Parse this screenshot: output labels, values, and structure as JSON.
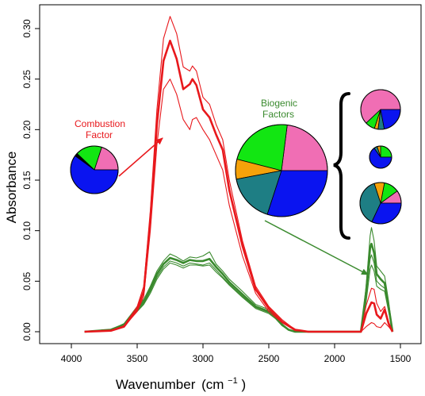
{
  "chart_data": {
    "type": "line",
    "title": "",
    "xlabel": "Wavenumber",
    "xlabel_unit_base": "(cm",
    "xlabel_unit_exp": "−1",
    "xlabel_unit_close": ")",
    "ylabel": "Absorbance",
    "xlim": [
      4000,
      1400
    ],
    "ylim": [
      0,
      0.32
    ],
    "x_reversed": true,
    "grid": false,
    "legend": "none",
    "x_ticks": [
      4000,
      3500,
      3000,
      2500,
      2000,
      1500
    ],
    "x_tick_labels": [
      "4000",
      "3500",
      "3000",
      "2500",
      "2000",
      "1500"
    ],
    "y_ticks": [
      0.0,
      0.05,
      0.1,
      0.15,
      0.2,
      0.25,
      0.3
    ],
    "y_tick_labels": [
      "0.00",
      "0.05",
      "0.10",
      "0.15",
      "0.20",
      "0.25",
      "0.30"
    ],
    "colors": {
      "combustion": "#e8181c",
      "biogenic": "#3a8a2e",
      "blue": "#0a14f0",
      "pink": "#f06eb4",
      "green": "#12e612",
      "teal": "#1e7e84",
      "orange": "#f5a20a",
      "black": "#000000"
    },
    "series": [
      {
        "group": "combustion",
        "bold": false,
        "points": [
          [
            3900,
            0
          ],
          [
            3700,
            0.001
          ],
          [
            3600,
            0.006
          ],
          [
            3500,
            0.025
          ],
          [
            3450,
            0.045
          ],
          [
            3400,
            0.12
          ],
          [
            3350,
            0.22
          ],
          [
            3300,
            0.29
          ],
          [
            3250,
            0.312
          ],
          [
            3200,
            0.295
          ],
          [
            3150,
            0.262
          ],
          [
            3100,
            0.258
          ],
          [
            3080,
            0.263
          ],
          [
            3050,
            0.258
          ],
          [
            3000,
            0.232
          ],
          [
            2950,
            0.225
          ],
          [
            2900,
            0.205
          ],
          [
            2850,
            0.19
          ],
          [
            2800,
            0.15
          ],
          [
            2700,
            0.09
          ],
          [
            2600,
            0.045
          ],
          [
            2500,
            0.025
          ],
          [
            2400,
            0.012
          ],
          [
            2300,
            0.002
          ],
          [
            2200,
            0
          ],
          [
            1800,
            0
          ],
          [
            1760,
            0.005
          ],
          [
            1720,
            0.009
          ],
          [
            1700,
            0.008
          ],
          [
            1680,
            0.005
          ],
          [
            1650,
            0.004
          ],
          [
            1620,
            0.009
          ],
          [
            1590,
            0.005
          ],
          [
            1560,
            0
          ]
        ]
      },
      {
        "group": "combustion",
        "bold": true,
        "points": [
          [
            3900,
            0
          ],
          [
            3700,
            0.001
          ],
          [
            3600,
            0.005
          ],
          [
            3500,
            0.022
          ],
          [
            3450,
            0.04
          ],
          [
            3400,
            0.11
          ],
          [
            3350,
            0.205
          ],
          [
            3300,
            0.268
          ],
          [
            3250,
            0.288
          ],
          [
            3200,
            0.27
          ],
          [
            3150,
            0.24
          ],
          [
            3100,
            0.245
          ],
          [
            3080,
            0.25
          ],
          [
            3050,
            0.244
          ],
          [
            3000,
            0.22
          ],
          [
            2950,
            0.212
          ],
          [
            2900,
            0.195
          ],
          [
            2850,
            0.18
          ],
          [
            2800,
            0.14
          ],
          [
            2700,
            0.085
          ],
          [
            2600,
            0.042
          ],
          [
            2500,
            0.023
          ],
          [
            2400,
            0.01
          ],
          [
            2300,
            0.002
          ],
          [
            2200,
            0
          ],
          [
            1800,
            0
          ],
          [
            1760,
            0.018
          ],
          [
            1720,
            0.029
          ],
          [
            1700,
            0.028
          ],
          [
            1680,
            0.017
          ],
          [
            1650,
            0.013
          ],
          [
            1620,
            0.022
          ],
          [
            1590,
            0.008
          ],
          [
            1560,
            0
          ]
        ]
      },
      {
        "group": "combustion",
        "bold": false,
        "points": [
          [
            3900,
            0
          ],
          [
            3700,
            0.001
          ],
          [
            3600,
            0.005
          ],
          [
            3500,
            0.02
          ],
          [
            3450,
            0.035
          ],
          [
            3400,
            0.1
          ],
          [
            3350,
            0.185
          ],
          [
            3300,
            0.24
          ],
          [
            3250,
            0.25
          ],
          [
            3200,
            0.235
          ],
          [
            3150,
            0.21
          ],
          [
            3100,
            0.2
          ],
          [
            3080,
            0.21
          ],
          [
            3050,
            0.212
          ],
          [
            3000,
            0.2
          ],
          [
            2950,
            0.19
          ],
          [
            2900,
            0.175
          ],
          [
            2850,
            0.16
          ],
          [
            2800,
            0.125
          ],
          [
            2700,
            0.075
          ],
          [
            2600,
            0.038
          ],
          [
            2500,
            0.02
          ],
          [
            2400,
            0.009
          ],
          [
            2300,
            0.001
          ],
          [
            2200,
            0
          ],
          [
            1800,
            0
          ],
          [
            1760,
            0.026
          ],
          [
            1720,
            0.043
          ],
          [
            1700,
            0.042
          ],
          [
            1680,
            0.028
          ],
          [
            1650,
            0.02
          ],
          [
            1620,
            0.025
          ],
          [
            1590,
            0.01
          ],
          [
            1560,
            0
          ]
        ]
      },
      {
        "group": "biogenic",
        "bold": false,
        "points": [
          [
            3900,
            0
          ],
          [
            3700,
            0.002
          ],
          [
            3600,
            0.008
          ],
          [
            3500,
            0.025
          ],
          [
            3450,
            0.032
          ],
          [
            3400,
            0.045
          ],
          [
            3350,
            0.06
          ],
          [
            3300,
            0.07
          ],
          [
            3250,
            0.077
          ],
          [
            3200,
            0.074
          ],
          [
            3150,
            0.07
          ],
          [
            3100,
            0.074
          ],
          [
            3050,
            0.073
          ],
          [
            3000,
            0.075
          ],
          [
            2950,
            0.079
          ],
          [
            2900,
            0.067
          ],
          [
            2850,
            0.06
          ],
          [
            2800,
            0.052
          ],
          [
            2700,
            0.04
          ],
          [
            2600,
            0.027
          ],
          [
            2500,
            0.022
          ],
          [
            2450,
            0.016
          ],
          [
            2400,
            0.008
          ],
          [
            2350,
            0.002
          ],
          [
            2300,
            0
          ],
          [
            1800,
            0
          ],
          [
            1760,
            0.045
          ],
          [
            1730,
            0.095
          ],
          [
            1720,
            0.103
          ],
          [
            1700,
            0.09
          ],
          [
            1680,
            0.065
          ],
          [
            1650,
            0.06
          ],
          [
            1620,
            0.055
          ],
          [
            1590,
            0.03
          ],
          [
            1560,
            0
          ]
        ]
      },
      {
        "group": "biogenic",
        "bold": true,
        "points": [
          [
            3900,
            0
          ],
          [
            3700,
            0.002
          ],
          [
            3600,
            0.007
          ],
          [
            3500,
            0.023
          ],
          [
            3450,
            0.03
          ],
          [
            3400,
            0.042
          ],
          [
            3350,
            0.057
          ],
          [
            3300,
            0.067
          ],
          [
            3250,
            0.073
          ],
          [
            3200,
            0.071
          ],
          [
            3150,
            0.068
          ],
          [
            3100,
            0.071
          ],
          [
            3050,
            0.07
          ],
          [
            3000,
            0.07
          ],
          [
            2950,
            0.072
          ],
          [
            2900,
            0.064
          ],
          [
            2850,
            0.057
          ],
          [
            2800,
            0.049
          ],
          [
            2700,
            0.037
          ],
          [
            2600,
            0.025
          ],
          [
            2500,
            0.02
          ],
          [
            2450,
            0.015
          ],
          [
            2400,
            0.007
          ],
          [
            2350,
            0.002
          ],
          [
            2300,
            0
          ],
          [
            1800,
            0
          ],
          [
            1760,
            0.04
          ],
          [
            1730,
            0.083
          ],
          [
            1720,
            0.087
          ],
          [
            1700,
            0.078
          ],
          [
            1680,
            0.057
          ],
          [
            1650,
            0.052
          ],
          [
            1620,
            0.048
          ],
          [
            1590,
            0.025
          ],
          [
            1560,
            0
          ]
        ]
      },
      {
        "group": "biogenic",
        "bold": false,
        "points": [
          [
            3900,
            0
          ],
          [
            3700,
            0.002
          ],
          [
            3600,
            0.006
          ],
          [
            3500,
            0.021
          ],
          [
            3450,
            0.028
          ],
          [
            3400,
            0.04
          ],
          [
            3350,
            0.054
          ],
          [
            3300,
            0.064
          ],
          [
            3250,
            0.07
          ],
          [
            3200,
            0.068
          ],
          [
            3150,
            0.065
          ],
          [
            3100,
            0.068
          ],
          [
            3050,
            0.067
          ],
          [
            3000,
            0.066
          ],
          [
            2950,
            0.068
          ],
          [
            2900,
            0.061
          ],
          [
            2850,
            0.054
          ],
          [
            2800,
            0.047
          ],
          [
            2700,
            0.035
          ],
          [
            2600,
            0.024
          ],
          [
            2500,
            0.019
          ],
          [
            2450,
            0.014
          ],
          [
            2400,
            0.007
          ],
          [
            2350,
            0.002
          ],
          [
            2300,
            0
          ],
          [
            1800,
            0
          ],
          [
            1760,
            0.035
          ],
          [
            1730,
            0.072
          ],
          [
            1720,
            0.076
          ],
          [
            1700,
            0.068
          ],
          [
            1680,
            0.05
          ],
          [
            1650,
            0.046
          ],
          [
            1620,
            0.043
          ],
          [
            1590,
            0.022
          ],
          [
            1560,
            0
          ]
        ]
      },
      {
        "group": "biogenic",
        "bold": false,
        "points": [
          [
            3900,
            0
          ],
          [
            3700,
            0.002
          ],
          [
            3600,
            0.006
          ],
          [
            3500,
            0.02
          ],
          [
            3450,
            0.027
          ],
          [
            3400,
            0.038
          ],
          [
            3350,
            0.052
          ],
          [
            3300,
            0.062
          ],
          [
            3250,
            0.068
          ],
          [
            3200,
            0.066
          ],
          [
            3150,
            0.063
          ],
          [
            3100,
            0.066
          ],
          [
            3050,
            0.066
          ],
          [
            3000,
            0.065
          ],
          [
            2950,
            0.066
          ],
          [
            2900,
            0.059
          ],
          [
            2850,
            0.053
          ],
          [
            2800,
            0.046
          ],
          [
            2700,
            0.034
          ],
          [
            2600,
            0.023
          ],
          [
            2500,
            0.018
          ],
          [
            2450,
            0.013
          ],
          [
            2400,
            0.006
          ],
          [
            2350,
            0.002
          ],
          [
            2300,
            0
          ],
          [
            1800,
            0
          ],
          [
            1760,
            0.03
          ],
          [
            1730,
            0.062
          ],
          [
            1720,
            0.066
          ],
          [
            1700,
            0.06
          ],
          [
            1680,
            0.045
          ],
          [
            1650,
            0.042
          ],
          [
            1620,
            0.04
          ],
          [
            1590,
            0.02
          ],
          [
            1560,
            0
          ]
        ]
      }
    ],
    "annotations": {
      "combustion_label_line1": "Combustion",
      "combustion_label_line2": "Factor",
      "biogenic_label_line1": "Biogenic",
      "biogenic_label_line2": "Factors"
    },
    "pies": [
      {
        "name": "combustion-pie",
        "slices": [
          {
            "value": 0.2,
            "color": "pink"
          },
          {
            "value": 0.18,
            "color": "green"
          },
          {
            "value": 0.02,
            "color": "black"
          },
          {
            "value": 0.6,
            "color": "blue"
          }
        ]
      },
      {
        "name": "biogenic-total-pie",
        "slices": [
          {
            "value": 0.23,
            "color": "pink"
          },
          {
            "value": 0.23,
            "color": "green"
          },
          {
            "value": 0.07,
            "color": "orange"
          },
          {
            "value": 0.17,
            "color": "teal"
          },
          {
            "value": 0.3,
            "color": "blue"
          }
        ]
      },
      {
        "name": "biogenic-pie-1",
        "slices": [
          {
            "value": 0.62,
            "color": "pink"
          },
          {
            "value": 0.08,
            "color": "green"
          },
          {
            "value": 0.03,
            "color": "orange"
          },
          {
            "value": 0.05,
            "color": "teal"
          },
          {
            "value": 0.22,
            "color": "blue"
          }
        ]
      },
      {
        "name": "biogenic-pie-2",
        "slices": [
          {
            "value": 0.25,
            "color": "green"
          },
          {
            "value": 0.05,
            "color": "orange"
          },
          {
            "value": 0.05,
            "color": "teal"
          },
          {
            "value": 0.65,
            "color": "blue"
          }
        ]
      },
      {
        "name": "biogenic-pie-3",
        "slices": [
          {
            "value": 0.1,
            "color": "pink"
          },
          {
            "value": 0.12,
            "color": "green"
          },
          {
            "value": 0.08,
            "color": "orange"
          },
          {
            "value": 0.38,
            "color": "teal"
          },
          {
            "value": 0.32,
            "color": "blue"
          }
        ]
      }
    ]
  }
}
